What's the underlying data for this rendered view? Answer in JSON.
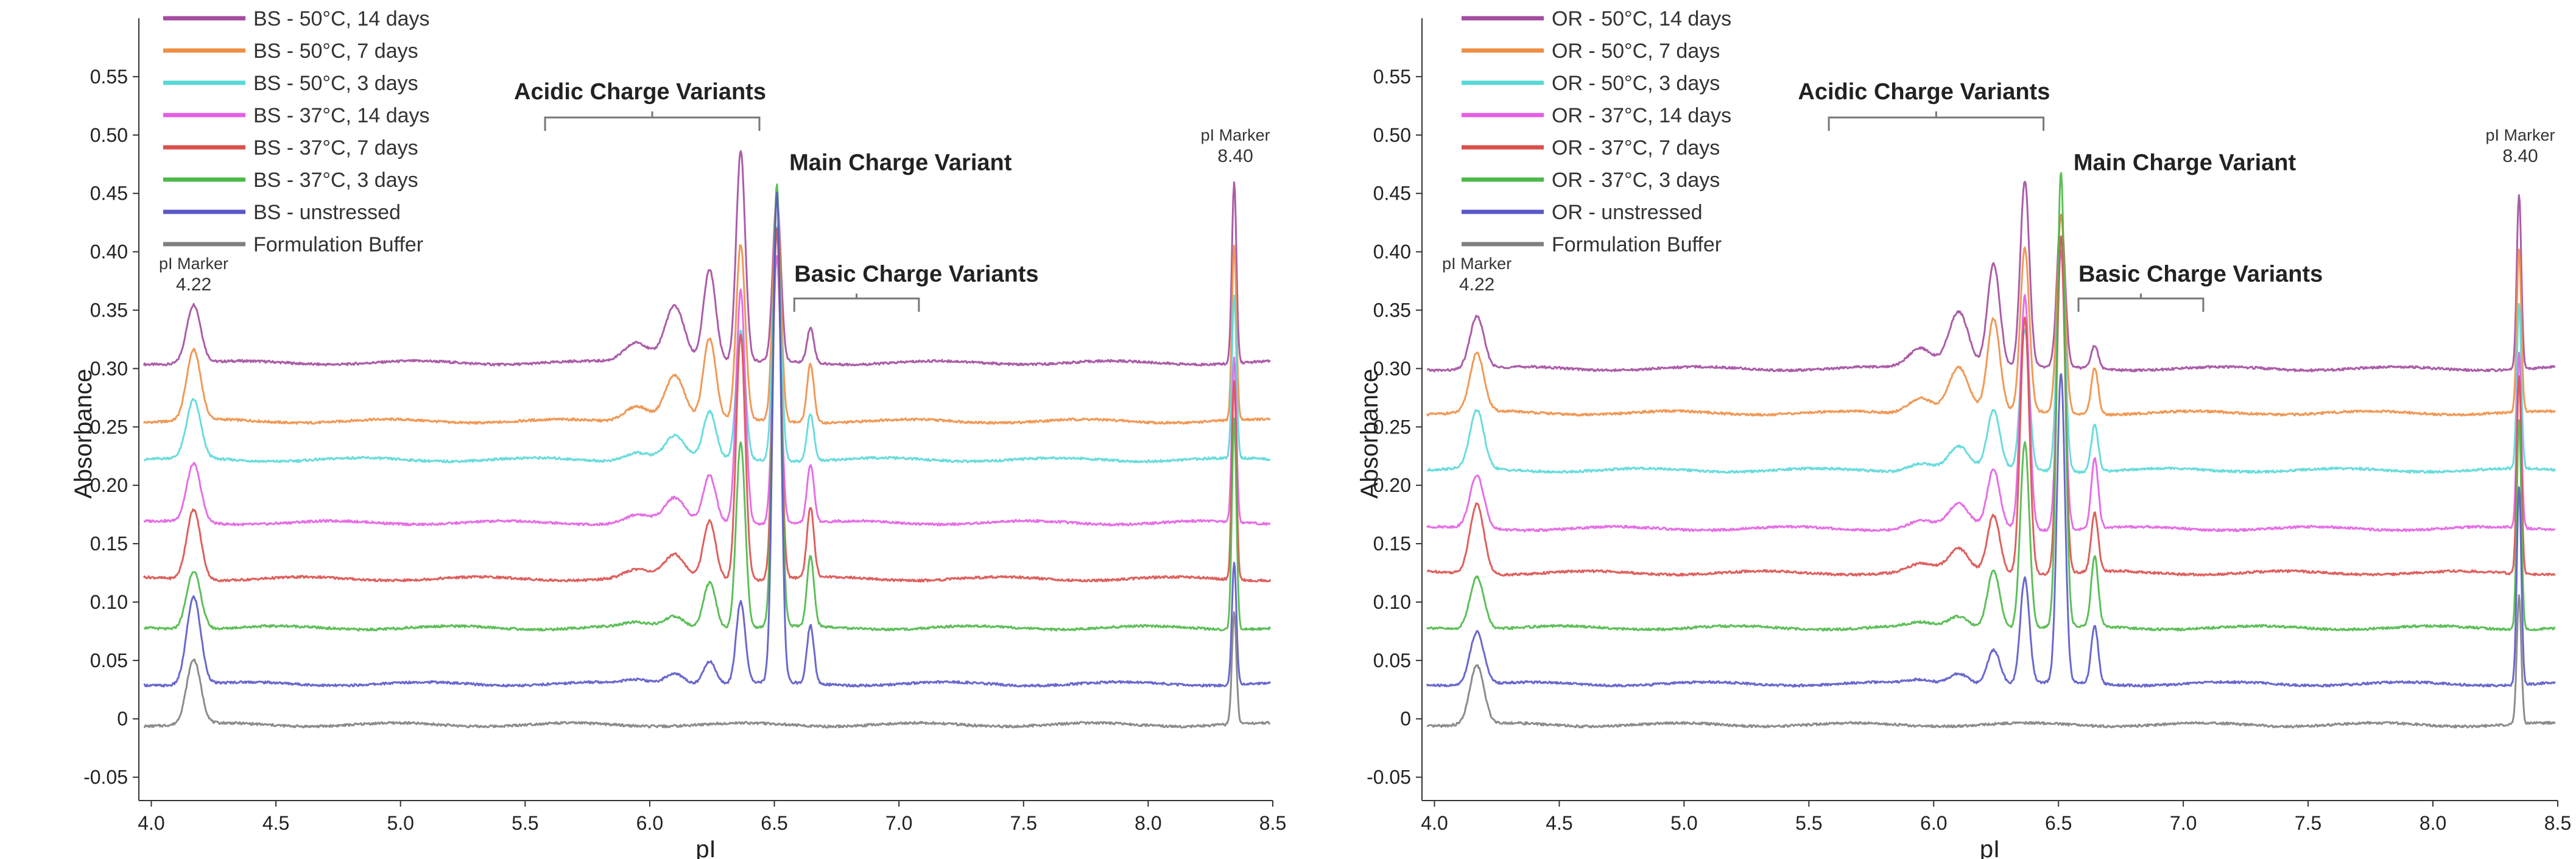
{
  "chart_data": [
    {
      "type": "line",
      "panel": "left",
      "title": "",
      "xlabel": "pI",
      "ylabel": "Absorbance",
      "xlim": [
        3.95,
        8.5
      ],
      "ylim": [
        -0.07,
        0.6
      ],
      "x_ticks": [
        "4.0",
        "4.5",
        "5.0",
        "5.5",
        "6.0",
        "6.5",
        "7.0",
        "7.5",
        "8.0",
        "8.5"
      ],
      "y_ticks": [
        "-0.05",
        "0",
        "0.05",
        "0.10",
        "0.15",
        "0.20",
        "0.25",
        "0.30",
        "0.35",
        "0.40",
        "0.45",
        "0.50",
        "0.55"
      ],
      "legend_position": "top-left",
      "series": [
        {
          "name": "BS - 50°C, 14 days",
          "color": "#a24b9f",
          "baseline": 0.305,
          "peaks": {
            "marker1": 0.05,
            "a1": 0.05,
            "a2": 0.08,
            "a3": 0.18,
            "main": 0.14,
            "b1": 0.03,
            "marker2": 0.155
          }
        },
        {
          "name": "BS - 50°C, 7 days",
          "color": "#ee8e44",
          "baseline": 0.255,
          "peaks": {
            "marker1": 0.06,
            "a1": 0.04,
            "a2": 0.07,
            "a3": 0.15,
            "main": 0.19,
            "b1": 0.05,
            "marker2": 0.15
          }
        },
        {
          "name": "BS - 50°C, 3 days",
          "color": "#5ad8d8",
          "baseline": 0.222,
          "peaks": {
            "marker1": 0.05,
            "a1": 0.02,
            "a2": 0.04,
            "a3": 0.11,
            "main": 0.2,
            "b1": 0.04,
            "marker2": 0.14
          }
        },
        {
          "name": "BS - 37°C, 14 days",
          "color": "#e25fe2",
          "baseline": 0.168,
          "peaks": {
            "marker1": 0.05,
            "a1": 0.02,
            "a2": 0.04,
            "a3": 0.2,
            "main": 0.23,
            "b1": 0.05,
            "marker2": 0.14
          }
        },
        {
          "name": "BS - 37°C, 7 days",
          "color": "#d9504c",
          "baseline": 0.12,
          "peaks": {
            "marker1": 0.06,
            "a1": 0.02,
            "a2": 0.05,
            "a3": 0.21,
            "main": 0.3,
            "b1": 0.06,
            "marker2": 0.17
          }
        },
        {
          "name": "BS - 37°C, 3 days",
          "color": "#4cb848",
          "baseline": 0.078,
          "peaks": {
            "marker1": 0.05,
            "a1": 0.01,
            "a2": 0.04,
            "a3": 0.16,
            "main": 0.38,
            "b1": 0.06,
            "marker2": 0.18
          }
        },
        {
          "name": "BS - unstressed",
          "color": "#5a58c8",
          "baseline": 0.03,
          "peaks": {
            "marker1": 0.075,
            "a1": 0.01,
            "a2": 0.02,
            "a3": 0.07,
            "main": 0.42,
            "b1": 0.05,
            "marker2": 0.105
          }
        },
        {
          "name": "Formulation Buffer",
          "color": "#7f7f7f",
          "baseline": -0.005,
          "peaks": {
            "marker1": 0.055,
            "a1": 0,
            "a2": 0,
            "a3": 0,
            "main": 0,
            "b1": 0,
            "marker2": 0.095
          }
        }
      ],
      "annotations": {
        "marker1_label": "pI Marker",
        "marker1_value": "4.22",
        "marker2_label": "pI Marker",
        "marker2_value": "8.40",
        "acidic": "Acidic Charge Variants",
        "main": "Main Charge Variant",
        "basic": "Basic Charge Variants"
      }
    },
    {
      "type": "line",
      "panel": "right",
      "title": "",
      "xlabel": "pI",
      "ylabel": "Absorbance",
      "xlim": [
        3.95,
        8.5
      ],
      "ylim": [
        -0.07,
        0.6
      ],
      "x_ticks": [
        "4.0",
        "4.5",
        "5.0",
        "5.5",
        "6.0",
        "6.5",
        "7.0",
        "7.5",
        "8.0",
        "8.5"
      ],
      "y_ticks": [
        "-0.05",
        "0",
        "0.05",
        "0.10",
        "0.15",
        "0.20",
        "0.25",
        "0.30",
        "0.35",
        "0.40",
        "0.45",
        "0.50",
        "0.55"
      ],
      "legend_position": "top-left",
      "series": [
        {
          "name": "OR - 50°C, 14 days",
          "color": "#a24b9f",
          "baseline": 0.3,
          "peaks": {
            "marker1": 0.045,
            "a1": 0.05,
            "a2": 0.09,
            "a3": 0.16,
            "main": 0.13,
            "b1": 0.02,
            "marker2": 0.15
          }
        },
        {
          "name": "OR - 50°C, 7 days",
          "color": "#ee8e44",
          "baseline": 0.262,
          "peaks": {
            "marker1": 0.05,
            "a1": 0.04,
            "a2": 0.08,
            "a3": 0.14,
            "main": 0.17,
            "b1": 0.04,
            "marker2": 0.14
          }
        },
        {
          "name": "OR - 50°C, 3 days",
          "color": "#5ad8d8",
          "baseline": 0.213,
          "peaks": {
            "marker1": 0.05,
            "a1": 0.02,
            "a2": 0.05,
            "a3": 0.12,
            "main": 0.2,
            "b1": 0.04,
            "marker2": 0.14
          }
        },
        {
          "name": "OR - 37°C, 14 days",
          "color": "#e25fe2",
          "baseline": 0.163,
          "peaks": {
            "marker1": 0.045,
            "a1": 0.02,
            "a2": 0.05,
            "a3": 0.2,
            "main": 0.24,
            "b1": 0.06,
            "marker2": 0.15
          }
        },
        {
          "name": "OR - 37°C, 7 days",
          "color": "#d9504c",
          "baseline": 0.125,
          "peaks": {
            "marker1": 0.06,
            "a1": 0.02,
            "a2": 0.05,
            "a3": 0.22,
            "main": 0.29,
            "b1": 0.05,
            "marker2": 0.17
          }
        },
        {
          "name": "OR - 37°C, 3 days",
          "color": "#4cb848",
          "baseline": 0.078,
          "peaks": {
            "marker1": 0.045,
            "a1": 0.01,
            "a2": 0.05,
            "a3": 0.16,
            "main": 0.39,
            "b1": 0.06,
            "marker2": 0.18
          }
        },
        {
          "name": "OR - unstressed",
          "color": "#5a58c8",
          "baseline": 0.03,
          "peaks": {
            "marker1": 0.045,
            "a1": 0.01,
            "a2": 0.03,
            "a3": 0.09,
            "main": 0.265,
            "b1": 0.05,
            "marker2": 0.17
          }
        },
        {
          "name": "Formulation Buffer",
          "color": "#7f7f7f",
          "baseline": -0.005,
          "peaks": {
            "marker1": 0.05,
            "a1": 0,
            "a2": 0,
            "a3": 0,
            "main": 0,
            "b1": 0,
            "marker2": 0.11
          }
        }
      ],
      "annotations": {
        "marker1_label": "pI Marker",
        "marker1_value": "4.22",
        "marker2_label": "pI Marker",
        "marker2_value": "8.40",
        "acidic": "Acidic Charge Variants",
        "main": "Main Charge Variant",
        "basic": "Basic Charge Variants"
      }
    }
  ]
}
